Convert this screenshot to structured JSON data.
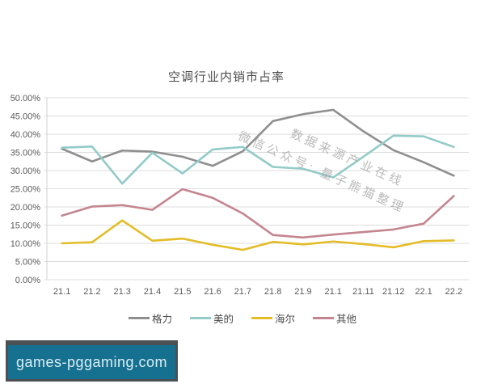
{
  "watermark": {
    "line1": "数据来源产业在线",
    "line2": "微信公众号: 量子熊猫整理"
  },
  "banner": {
    "text": "games-pggaming.com",
    "outer_color": "#4b5055",
    "inner_color": "#16708f",
    "text_color": "#ddeef5"
  },
  "chart_data": {
    "type": "line",
    "title": "空调行业内销市占率",
    "categories": [
      "21.1",
      "21.2",
      "21.3",
      "21.4",
      "21.5",
      "21.6",
      "21.7",
      "21.8",
      "21.9",
      "21.1",
      "21.11",
      "21.12",
      "22.1",
      "22.2"
    ],
    "series": [
      {
        "name": "格力",
        "color": "#8f8f8f",
        "values": [
          36.0,
          32.5,
          35.5,
          35.2,
          33.8,
          31.3,
          35.3,
          43.6,
          45.5,
          46.7,
          40.8,
          35.6,
          32.3,
          28.6
        ]
      },
      {
        "name": "美的",
        "color": "#92cbc8",
        "values": [
          36.3,
          36.6,
          26.4,
          34.9,
          29.2,
          35.8,
          36.5,
          31.0,
          30.5,
          28.1,
          33.8,
          39.6,
          39.4,
          36.5
        ]
      },
      {
        "name": "海尔",
        "color": "#e3bc28",
        "values": [
          10.0,
          10.3,
          16.3,
          10.7,
          11.3,
          9.6,
          8.2,
          10.4,
          9.7,
          10.5,
          9.8,
          8.9,
          10.6,
          10.8
        ]
      },
      {
        "name": "其他",
        "color": "#c4858f",
        "values": [
          17.6,
          20.1,
          20.5,
          19.2,
          24.9,
          22.5,
          18.2,
          12.3,
          11.6,
          12.4,
          13.1,
          13.8,
          15.4,
          23.0
        ]
      }
    ],
    "y_axis": {
      "min": 0,
      "max": 50,
      "step": 5
    },
    "y_ticks": [
      "0.00%",
      "5.00%",
      "10.00%",
      "15.00%",
      "20.00%",
      "25.00%",
      "30.00%",
      "35.00%",
      "40.00%",
      "45.00%",
      "50.00%"
    ],
    "grid": true,
    "legend_position": "bottom",
    "colors": {
      "grid": "#dcdcdc",
      "axis_line": "#d0d0d0",
      "axis_text": "#595959",
      "title_text": "#4d4d4d"
    }
  }
}
